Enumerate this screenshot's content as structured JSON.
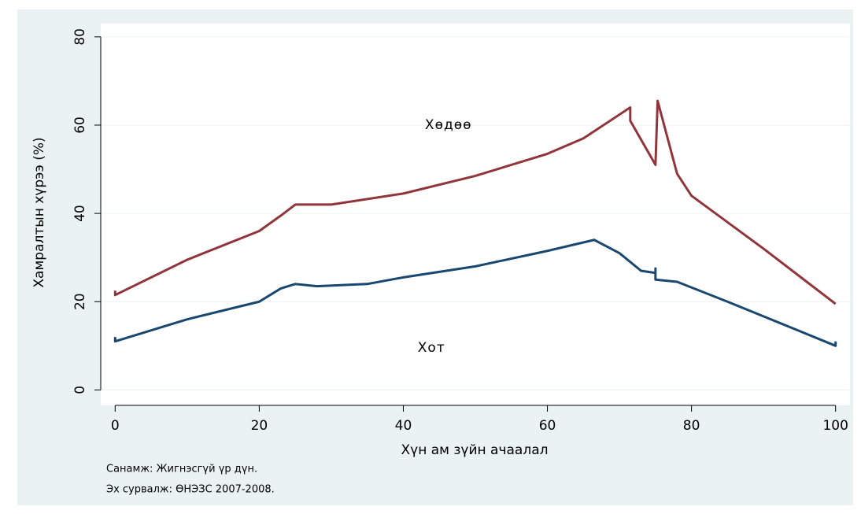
{
  "chart_data": {
    "type": "line",
    "xlabel": "Хүн ам зүйн ачаалал",
    "ylabel": "Хамралтын хүрээ (%)",
    "notes": [
      "Санамж: Жигнэсгүй үр дүн.",
      "Эх сурвалж: ӨНЭЗС 2007-2008."
    ],
    "xlim": [
      -2,
      102
    ],
    "ylim": [
      -3.5,
      83
    ],
    "xticks": [
      0,
      20,
      40,
      60,
      80,
      100
    ],
    "yticks": [
      0,
      20,
      40,
      60,
      80
    ],
    "grid": true,
    "series": [
      {
        "name": "Хөдөө",
        "color": "#90353b",
        "x": [
          0,
          0,
          10,
          20,
          23,
          25,
          30,
          40,
          50,
          60,
          65,
          71.5,
          71.5,
          75,
          75.3,
          78,
          80,
          90,
          100
        ],
        "values": [
          22.5,
          21.5,
          29.5,
          36,
          39.5,
          42,
          42,
          44.5,
          48.5,
          53.5,
          57,
          64,
          61,
          51,
          65.5,
          49,
          44,
          32,
          19.5
        ]
      },
      {
        "name": "Хот",
        "color": "#1a476f",
        "x": [
          0,
          0,
          10,
          20,
          23,
          25,
          28,
          35,
          40,
          50,
          60,
          66.5,
          70,
          73,
          75,
          75,
          75,
          78,
          85,
          100,
          100
        ],
        "values": [
          12,
          11,
          16,
          20,
          23,
          24,
          23.5,
          24,
          25.5,
          28,
          31.5,
          34,
          31,
          27,
          26.5,
          27.5,
          25,
          24.5,
          20,
          10,
          11
        ]
      }
    ],
    "annotations": [
      {
        "text": "Хөдөө",
        "x": 43,
        "y": 60
      },
      {
        "text": "Хот",
        "x": 42,
        "y": 9.5
      }
    ]
  }
}
